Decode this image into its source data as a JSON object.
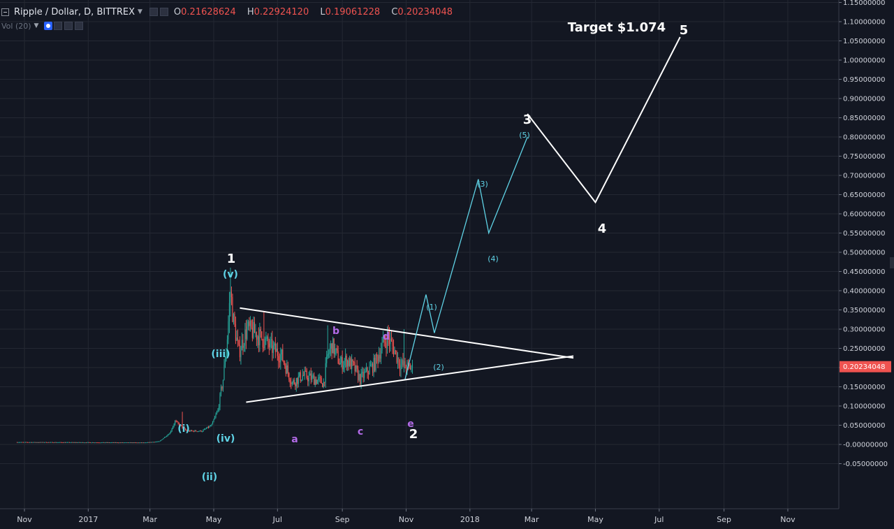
{
  "header": {
    "symbol": "Ripple / Dollar, D, BITTREX",
    "o_label": "O",
    "o_value": "0.21628624",
    "h_label": "H",
    "h_value": "0.22924120",
    "l_label": "L",
    "l_value": "0.19061228",
    "c_label": "C",
    "c_value": "0.20234048",
    "volume_label": "Vol (20)"
  },
  "price_axis": {
    "ticks": [
      "1.15000000",
      "1.10000000",
      "1.05000000",
      "1.00000000",
      "0.95000000",
      "0.90000000",
      "0.85000000",
      "0.80000000",
      "0.75000000",
      "0.70000000",
      "0.65000000",
      "0.60000000",
      "0.55000000",
      "0.50000000",
      "0.45000000",
      "0.40000000",
      "0.35000000",
      "0.30000000",
      "0.25000000",
      "0.20000000",
      "0.15000000",
      "0.10000000",
      "0.05000000",
      "-0.00000000",
      "-0.05000000"
    ],
    "current_price": "0.20234048",
    "current_price_value": 0.20234048
  },
  "time_axis": {
    "labels": [
      "Nov",
      "2017",
      "Mar",
      "May",
      "Jul",
      "Sep",
      "Nov",
      "2018",
      "Mar",
      "May",
      "Jul",
      "Sep",
      "Nov"
    ]
  },
  "colors": {
    "background": "#131722",
    "grid": "#242833",
    "up": "#26a69a",
    "down": "#ef5350",
    "wave_white": "#ffffff",
    "wave_cyan": "#5fd3e6",
    "wave_purple": "#b36be8",
    "price_tag": "#ef5350"
  },
  "annotations": {
    "target": "Target $1.074",
    "wave_major": [
      "1",
      "2",
      "3",
      "4",
      "5"
    ],
    "wave_minor_roman": [
      "(i)",
      "(ii)",
      "(iii)",
      "(iv)",
      "(v)"
    ],
    "wave_triangle": [
      "a",
      "b",
      "c",
      "d",
      "e"
    ],
    "wave_projection": [
      "(1)",
      "(2)",
      "(3)",
      "(4)",
      "(5)"
    ]
  },
  "chart_data": {
    "type": "candlestick",
    "title": "Ripple / Dollar, D, BITTREX",
    "ylim": [
      -0.07,
      1.16
    ],
    "triangle": {
      "upper_line": [
        {
          "date": "2017-05-26",
          "value": 0.355
        },
        {
          "date": "2018-04-10",
          "value": 0.225
        }
      ],
      "lower_line": [
        {
          "date": "2017-06-01",
          "value": 0.11
        },
        {
          "date": "2018-04-10",
          "value": 0.23
        }
      ]
    },
    "projection_path": [
      {
        "label": "2",
        "date": "2017-10-31",
        "value": 0.17
      },
      {
        "label": "(1)",
        "date": "2017-11-20",
        "value": 0.39
      },
      {
        "label": "(2)",
        "date": "2017-11-28",
        "value": 0.29
      },
      {
        "label": "(3)",
        "date": "2018-01-09",
        "value": 0.69
      },
      {
        "label": "(4)",
        "date": "2018-01-19",
        "value": 0.55
      },
      {
        "label": "(5)",
        "date": "2018-02-25",
        "value": 0.8
      }
    ],
    "major_wave_path": [
      {
        "label": "3",
        "date": "2018-02-25",
        "value": 0.86
      },
      {
        "label": "4",
        "date": "2018-05-01",
        "value": 0.63
      },
      {
        "label": "5",
        "date": "2018-07-21",
        "value": 1.06
      }
    ],
    "last_close": 0.20234048
  }
}
